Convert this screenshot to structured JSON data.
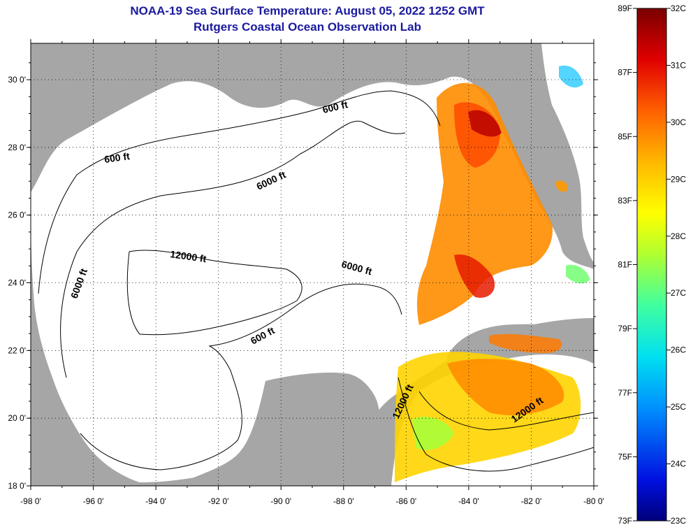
{
  "header": {
    "title": "NOAA-19 Sea Surface Temperature:  August 05, 2022 1252 GMT",
    "subtitle": "Rutgers Coastal Ocean Observation Lab"
  },
  "axes": {
    "x_ticks": [
      "-98 0'",
      "-96 0'",
      "-94 0'",
      "-92 0'",
      "-90 0'",
      "-88 0'",
      "-86 0'",
      "-84 0'",
      "-82 0'",
      "-80 0'"
    ],
    "y_ticks": [
      "30 0'",
      "28 0'",
      "26 0'",
      "24 0'",
      "22 0'",
      "20 0'",
      "18 0'"
    ]
  },
  "contours": {
    "labels": [
      "600 ft",
      "600 ft",
      "6000 ft",
      "12000 ft",
      "6000 ft",
      "6000 ft",
      "600 ft",
      "12000 ft",
      "12000 ft"
    ]
  },
  "colorbar": {
    "fahrenheit": [
      "89F",
      "87F",
      "85F",
      "83F",
      "81F",
      "79F",
      "77F",
      "75F",
      "73F"
    ],
    "celsius": [
      "32C",
      "31C",
      "30C",
      "29C",
      "28C",
      "27C",
      "26C",
      "25C",
      "24C",
      "23C"
    ]
  },
  "colors": {
    "land": "#a6a6a6",
    "ocean_nodata": "#ffffff",
    "title": "#1a1a9e"
  }
}
